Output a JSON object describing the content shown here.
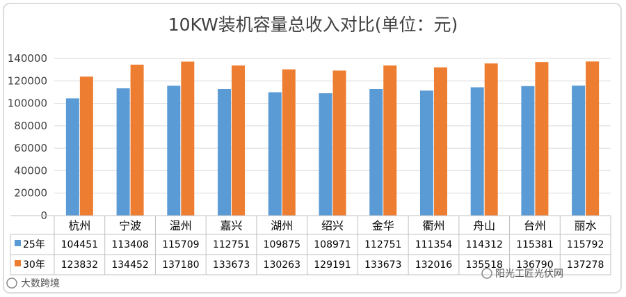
{
  "chart_data": {
    "type": "bar",
    "title": "10KW装机容量总收入对比(单位：元)",
    "categories": [
      "杭州",
      "宁波",
      "温州",
      "嘉兴",
      "湖州",
      "绍兴",
      "金华",
      "衢州",
      "舟山",
      "台州",
      "丽水"
    ],
    "series": [
      {
        "name": "25年",
        "color": "#5b9bd5",
        "values": [
          104451,
          113408,
          115709,
          112751,
          109875,
          108971,
          112751,
          111354,
          114312,
          115381,
          115792
        ]
      },
      {
        "name": "30年",
        "color": "#ed7d31",
        "values": [
          123832,
          134452,
          137180,
          133673,
          130263,
          129191,
          133673,
          132016,
          135518,
          136790,
          137278
        ]
      }
    ],
    "table_cells": [
      [
        "104451",
        "113408",
        "115709",
        "112751",
        "109875",
        "108971",
        "112751",
        "111354",
        "114312",
        "115381",
        "115792"
      ],
      [
        "123832",
        "134452",
        "137180",
        "133673",
        "130263",
        "129191",
        "133673",
        "132016",
        "135518",
        "136790",
        "137278"
      ]
    ],
    "yticks": [
      "0",
      "20000",
      "40000",
      "60000",
      "80000",
      "100000",
      "120000",
      "140000"
    ],
    "ylim": [
      0,
      140000
    ],
    "grid": true,
    "legend": "data-table"
  },
  "watermarks": {
    "left": "大数跨境",
    "right": "阳光工匠光伏网"
  }
}
